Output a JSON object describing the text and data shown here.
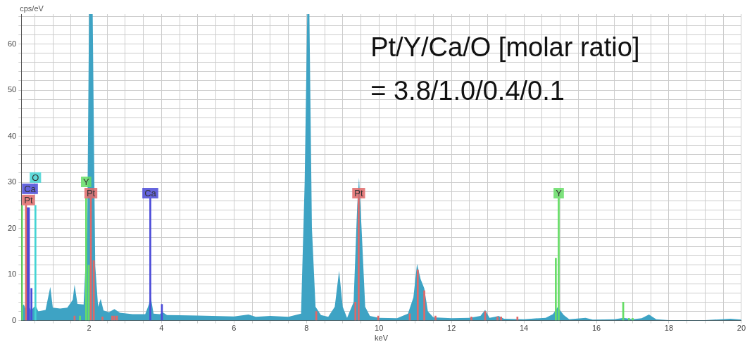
{
  "chart_data": {
    "type": "area",
    "xlabel": "keV",
    "ylabel": "cps/eV",
    "annotations": [
      "Pt/Y/Ca/O [molar ratio]",
      "= 3.8/1.0/0.4/0.1"
    ],
    "xlim": [
      0.13,
      20
    ],
    "ylim": [
      0,
      66.5
    ],
    "xticks": [
      {
        "value": 0.5,
        "label": null
      },
      {
        "value": 1,
        "label": null
      },
      {
        "value": 1.5,
        "label": null
      },
      2,
      {
        "value": 2.5,
        "label": null
      },
      {
        "value": 3,
        "label": null
      },
      {
        "value": 3.5,
        "label": null
      },
      4,
      {
        "value": 4.5,
        "label": null
      },
      {
        "value": 5,
        "label": null
      },
      {
        "value": 5.5,
        "label": null
      },
      6,
      {
        "value": 6.5,
        "label": null
      },
      {
        "value": 7,
        "label": null
      },
      {
        "value": 7.5,
        "label": null
      },
      8,
      {
        "value": 8.5,
        "label": null
      },
      {
        "value": 9,
        "label": null
      },
      {
        "value": 9.5,
        "label": null
      },
      10,
      {
        "value": 10.5,
        "label": null
      },
      {
        "value": 11,
        "label": null
      },
      {
        "value": 11.5,
        "label": null
      },
      12,
      {
        "value": 12.5,
        "label": null
      },
      {
        "value": 13,
        "label": null
      },
      {
        "value": 13.5,
        "label": null
      },
      14,
      {
        "value": 14.5,
        "label": null
      },
      {
        "value": 15,
        "label": null
      },
      {
        "value": 15.5,
        "label": null
      },
      16,
      {
        "value": 16.5,
        "label": null
      },
      {
        "value": 17,
        "label": null
      },
      {
        "value": 17.5,
        "label": null
      },
      18,
      {
        "value": 18.5,
        "label": null
      },
      {
        "value": 19,
        "label": null
      },
      {
        "value": 19.5,
        "label": null
      },
      20
    ],
    "yticks": [
      0,
      {
        "value": 2,
        "label": null
      },
      {
        "value": 4,
        "label": null
      },
      {
        "value": 6,
        "label": null
      },
      {
        "value": 8,
        "label": null
      },
      10,
      {
        "value": 12,
        "label": null
      },
      {
        "value": 14,
        "label": null
      },
      {
        "value": 16,
        "label": null
      },
      {
        "value": 18,
        "label": null
      },
      20,
      {
        "value": 22,
        "label": null
      },
      {
        "value": 24,
        "label": null
      },
      {
        "value": 26,
        "label": null
      },
      {
        "value": 28,
        "label": null
      },
      30,
      {
        "value": 32,
        "label": null
      },
      {
        "value": 34,
        "label": null
      },
      {
        "value": 36,
        "label": null
      },
      {
        "value": 38,
        "label": null
      },
      40,
      {
        "value": 42,
        "label": null
      },
      {
        "value": 44,
        "label": null
      },
      {
        "value": 46,
        "label": null
      },
      {
        "value": 48,
        "label": null
      },
      50,
      {
        "value": 52,
        "label": null
      },
      {
        "value": 54,
        "label": null
      },
      {
        "value": 56,
        "label": null
      },
      {
        "value": 58,
        "label": null
      },
      60,
      {
        "value": 62,
        "label": null
      },
      {
        "value": 64,
        "label": null
      },
      {
        "value": 66,
        "label": null
      }
    ],
    "grid": true,
    "series": [
      {
        "color": "#3ea3c4",
        "x": [
          0.13,
          0.2,
          0.25,
          0.3,
          0.4,
          0.52,
          0.6,
          0.8,
          0.93,
          1.0,
          1.2,
          1.4,
          1.55,
          1.6,
          1.68,
          1.85,
          1.95,
          2.0,
          2.1,
          2.17,
          2.25,
          2.32,
          2.4,
          2.55,
          2.7,
          2.85,
          3.2,
          3.55,
          3.65,
          3.7,
          3.78,
          3.95,
          4.03,
          4.15,
          5,
          6,
          6.4,
          6.6,
          7.0,
          7.5,
          7.85,
          7.95,
          8.02,
          8.08,
          8.15,
          8.25,
          8.4,
          8.6,
          8.78,
          8.9,
          9.0,
          9.12,
          9.3,
          9.4,
          9.45,
          9.52,
          9.62,
          9.75,
          10,
          10.5,
          10.8,
          10.95,
          11.05,
          11.15,
          11.25,
          11.35,
          11.5,
          12,
          12.5,
          12.8,
          12.93,
          13.05,
          13.2,
          13.3,
          13.45,
          14,
          14.6,
          14.8,
          14.93,
          15.1,
          15.25,
          15.7,
          15.9,
          16.5,
          16.75,
          17.0,
          17.25,
          17.45,
          17.65,
          18,
          19,
          19.7,
          20
        ],
        "values": [
          3,
          3.5,
          2.5,
          3.8,
          2.2,
          3.3,
          2.0,
          2.3,
          7.3,
          2.8,
          2.6,
          2.8,
          4.5,
          7.8,
          3.6,
          3.5,
          20,
          66.5,
          66.5,
          12,
          3,
          4.7,
          2.2,
          1.8,
          2.5,
          1.7,
          1.4,
          1.4,
          3.5,
          5.2,
          1.5,
          1.4,
          1.8,
          1.2,
          1.1,
          0.9,
          1.3,
          0.8,
          1.0,
          0.8,
          1.5,
          30,
          66.5,
          66.5,
          20,
          3,
          1.2,
          0.8,
          3,
          10.8,
          3,
          0.6,
          4,
          25,
          31,
          20,
          3,
          1,
          0.6,
          0.5,
          1.5,
          5,
          12.3,
          9,
          7,
          2,
          0.7,
          0.5,
          0.6,
          1,
          2.3,
          0.6,
          0.8,
          1,
          0.4,
          0.3,
          0.6,
          1.4,
          2.9,
          1.2,
          0.3,
          0.6,
          0.2,
          0.3,
          0.6,
          0.3,
          0.5,
          1.3,
          0.3,
          0.1,
          0.1,
          0.4,
          0.2
        ]
      },
      {
        "type": "bar",
        "color": "#e06868",
        "x": [
          0.26,
          1.6,
          2.05,
          2.13,
          2.37,
          2.64,
          2.7,
          2.77,
          8.27,
          9.35,
          9.44,
          9.98,
          10.85,
          11.07,
          11.25,
          11.56,
          12.55,
          12.93,
          13.27,
          13.37,
          13.82
        ],
        "values": [
          25,
          1,
          26.5,
          13,
          0.8,
          1,
          1,
          1,
          2,
          4,
          26.5,
          1,
          1.5,
          11,
          6.5,
          1,
          0.8,
          2,
          0.8,
          0.8,
          0.8
        ],
        "value_labels": [
          "Pt",
          null,
          "Pt",
          null,
          null,
          null,
          null,
          null,
          null,
          null,
          "Pt",
          null,
          null,
          null,
          null,
          null,
          null,
          null,
          null,
          null,
          null
        ]
      },
      {
        "type": "bar",
        "color": "#66dd66",
        "x": [
          0.15,
          1.75,
          1.92,
          1.99,
          2.07,
          14.88,
          14.96,
          16.74,
          16.9,
          17.0
        ],
        "values": [
          25,
          1,
          26.5,
          12,
          null,
          13.5,
          26.5,
          4,
          0.5,
          0.5
        ],
        "value_labels": [
          null,
          null,
          "Y",
          null,
          null,
          null,
          "Y",
          null,
          null,
          null
        ]
      },
      {
        "type": "bar",
        "color": "#4a4ad8",
        "x": [
          0.3,
          0.34,
          0.41,
          3.69,
          4.01
        ],
        "values": [
          24.5,
          24.5,
          7,
          26.5,
          3.5
        ],
        "value_labels": [
          "Ca",
          null,
          null,
          "Ca",
          null
        ]
      },
      {
        "type": "bar",
        "color": "#44d4d4",
        "x": [
          0.52
        ],
        "values": [
          25
        ],
        "value_labels": [
          "O"
        ]
      }
    ]
  }
}
